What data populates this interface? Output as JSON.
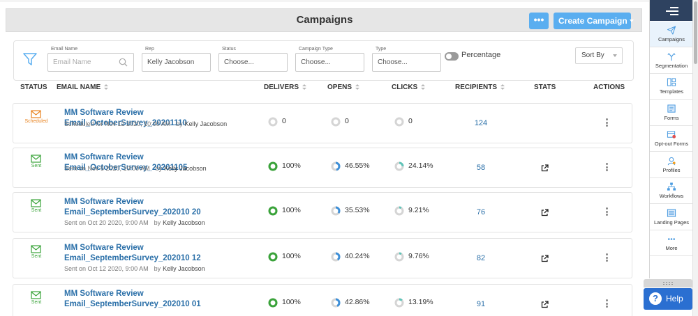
{
  "header": {
    "title": "Campaigns",
    "more_label": "•••",
    "create_label": "Create Campaign"
  },
  "filters": {
    "email_name": {
      "label": "Email Name",
      "placeholder": "Email Name",
      "value": ""
    },
    "rep": {
      "label": "Rep",
      "value": "Kelly Jacobson"
    },
    "status": {
      "label": "Status",
      "value": "Choose..."
    },
    "campaign_type": {
      "label": "Campaign Type",
      "value": "Choose..."
    },
    "type": {
      "label": "Type",
      "value": "Choose..."
    },
    "percentage_label": "Percentage",
    "sort_label": "Sort By"
  },
  "columns": {
    "status": "STATUS",
    "email_name": "EMAIL NAME",
    "delivers": "DELIVERS",
    "opens": "OPENS",
    "clicks": "CLICKS",
    "recipients": "RECIPIENTS",
    "stats": "STATS",
    "actions": "ACTIONS"
  },
  "rows": [
    {
      "status": "Scheduled",
      "name": "MM Software Review Email_OctoberSurvey_20201110",
      "sub": "Scheduled for Nov 12 2020, 10:00 AM",
      "by": "by",
      "rep": "Kelly Jacobson",
      "delivers": "0",
      "opens": "0",
      "clicks": "0",
      "delivers_pct": 0,
      "opens_pct": 0,
      "clicks_pct": 0,
      "recipients": "124",
      "has_stats": false
    },
    {
      "status": "Sent",
      "name": "MM Software Review Email_OctoberSurvey_20201105",
      "sub": "Sent on Nov 5 2020, 10:00 AM",
      "by": "by",
      "rep": "Kelly Jacobson",
      "delivers": "100%",
      "opens": "46.55%",
      "clicks": "24.14%",
      "delivers_pct": 100,
      "opens_pct": 46.55,
      "clicks_pct": 24.14,
      "recipients": "58",
      "has_stats": true
    },
    {
      "status": "Sent",
      "name": "MM Software Review Email_SeptemberSurvey_202010 20",
      "sub": "Sent on Oct 20 2020, 9:00 AM",
      "by": "by",
      "rep": "Kelly Jacobson",
      "delivers": "100%",
      "opens": "35.53%",
      "clicks": "9.21%",
      "delivers_pct": 100,
      "opens_pct": 35.53,
      "clicks_pct": 9.21,
      "recipients": "76",
      "has_stats": true
    },
    {
      "status": "Sent",
      "name": "MM Software Review Email_SeptemberSurvey_202010 12",
      "sub": "Sent on Oct 12 2020, 9:00 AM",
      "by": "by",
      "rep": "Kelly Jacobson",
      "delivers": "100%",
      "opens": "40.24%",
      "clicks": "9.76%",
      "delivers_pct": 100,
      "opens_pct": 40.24,
      "clicks_pct": 9.76,
      "recipients": "82",
      "has_stats": true
    },
    {
      "status": "Sent",
      "name": "MM Software Review Email_SeptemberSurvey_202010 01",
      "sub": "",
      "by": "",
      "rep": "",
      "delivers": "100%",
      "opens": "42.86%",
      "clicks": "13.19%",
      "delivers_pct": 100,
      "opens_pct": 42.86,
      "clicks_pct": 13.19,
      "recipients": "91",
      "has_stats": true
    }
  ],
  "sidebar": {
    "items": [
      {
        "label": "Campaigns",
        "icon": "paper-plane-icon",
        "active": true
      },
      {
        "label": "Segmentation",
        "icon": "segmentation-icon",
        "active": false
      },
      {
        "label": "Templates",
        "icon": "templates-icon",
        "active": false
      },
      {
        "label": "Forms",
        "icon": "forms-icon",
        "active": false
      },
      {
        "label": "Opt-out Forms",
        "icon": "opt-out-forms-icon",
        "active": false
      },
      {
        "label": "Profiles",
        "icon": "profiles-icon",
        "active": false
      },
      {
        "label": "Workflows",
        "icon": "workflows-icon",
        "active": false
      },
      {
        "label": "Landing Pages",
        "icon": "landing-pages-icon",
        "active": false
      },
      {
        "label": "More",
        "icon": "more-dots-icon",
        "active": false
      }
    ]
  },
  "help": {
    "label": "Help",
    "glyph": "?"
  },
  "colors": {
    "accent": "#5aaef0",
    "link": "#2a6fa8",
    "scheduled": "#e8821e",
    "sent": "#3aa33a",
    "sidebar_top": "#2e4260",
    "help": "#2a6fd1"
  }
}
